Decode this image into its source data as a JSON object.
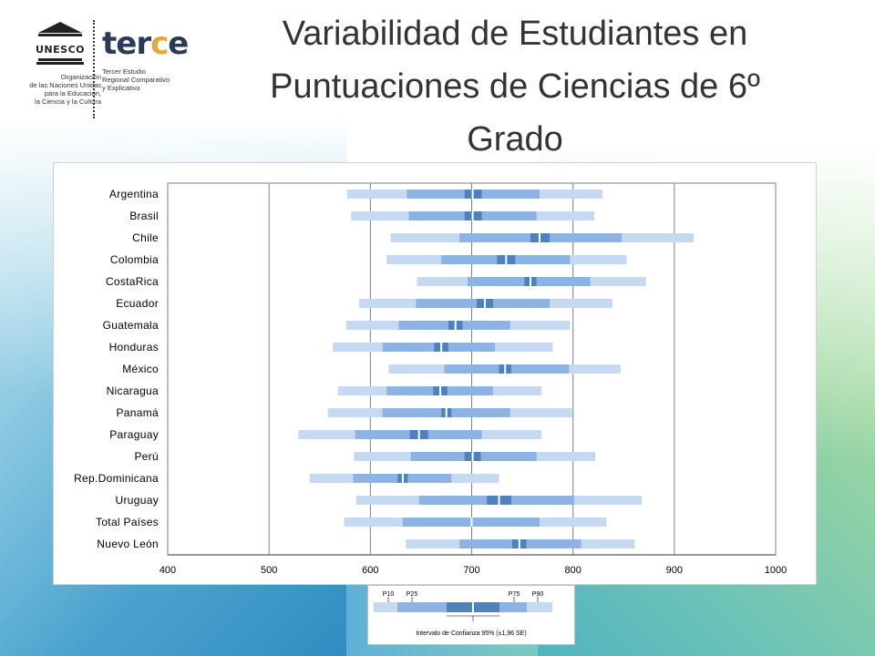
{
  "title": "Variabilidad de Estudiantes en Puntuaciones de Ciencias de 6º Grado",
  "logos": {
    "unesco_word": "UNESCO",
    "unesco_org": "Organización\nde las Naciones Unidas\npara la Educación,\nla Ciencia y la Cultura",
    "terce_word_a": "ter",
    "terce_word_c": "c",
    "terce_word_e": "e",
    "terce_sub": "Tercer Estudio\nRegional Comparativo\ny Explicativo"
  },
  "colors": {
    "outer_band": "#c6d9f1",
    "inner_band": "#8db3e2",
    "ci_band": "#4f81bd",
    "mean_line": "#ffffff",
    "axis": "#595959"
  },
  "chart_data": {
    "type": "bar",
    "subtype": "percentile-range",
    "xlim": [
      400,
      1000
    ],
    "xticks": [
      400,
      500,
      600,
      700,
      800,
      900,
      1000
    ],
    "gridlines": true,
    "categories": [
      "Argentina",
      "Brasil",
      "Chile",
      "Colombia",
      "CostaRica",
      "Ecuador",
      "Guatemala",
      "Honduras",
      "México",
      "Nicaragua",
      "Panamá",
      "Paraguay",
      "Perú",
      "Rep.Dominicana",
      "Uruguay",
      "Total Países",
      "Nuevo León"
    ],
    "p10": [
      577,
      581,
      620,
      616,
      646,
      589,
      576,
      563,
      618,
      568,
      558,
      529,
      584,
      540,
      586,
      574,
      635
    ],
    "p25": [
      636,
      638,
      688,
      670,
      696,
      645,
      628,
      612,
      673,
      616,
      612,
      585,
      640,
      583,
      648,
      632,
      688
    ],
    "ci_low": [
      693,
      693,
      758,
      725,
      752,
      705,
      677,
      663,
      727,
      662,
      670,
      639,
      693,
      627,
      715,
      700,
      740
    ],
    "mean": [
      701,
      701,
      767,
      734,
      758,
      713,
      684,
      670,
      733,
      669,
      675,
      648,
      701,
      632,
      727,
      700,
      747
    ],
    "ci_high": [
      710,
      710,
      777,
      743,
      764,
      721,
      691,
      677,
      739,
      676,
      680,
      657,
      709,
      637,
      739,
      701,
      754
    ],
    "p75": [
      767,
      764,
      848,
      797,
      817,
      777,
      738,
      723,
      796,
      721,
      738,
      710,
      764,
      680,
      801,
      767,
      808
    ],
    "p90": [
      829,
      821,
      919,
      853,
      872,
      839,
      797,
      780,
      847,
      769,
      799,
      769,
      822,
      727,
      868,
      833,
      861
    ]
  },
  "legend": {
    "labels": [
      "P10",
      "P25",
      "P75",
      "P90"
    ],
    "caption": "Intervalo de Confianza 95% (±1,96 SE)"
  }
}
